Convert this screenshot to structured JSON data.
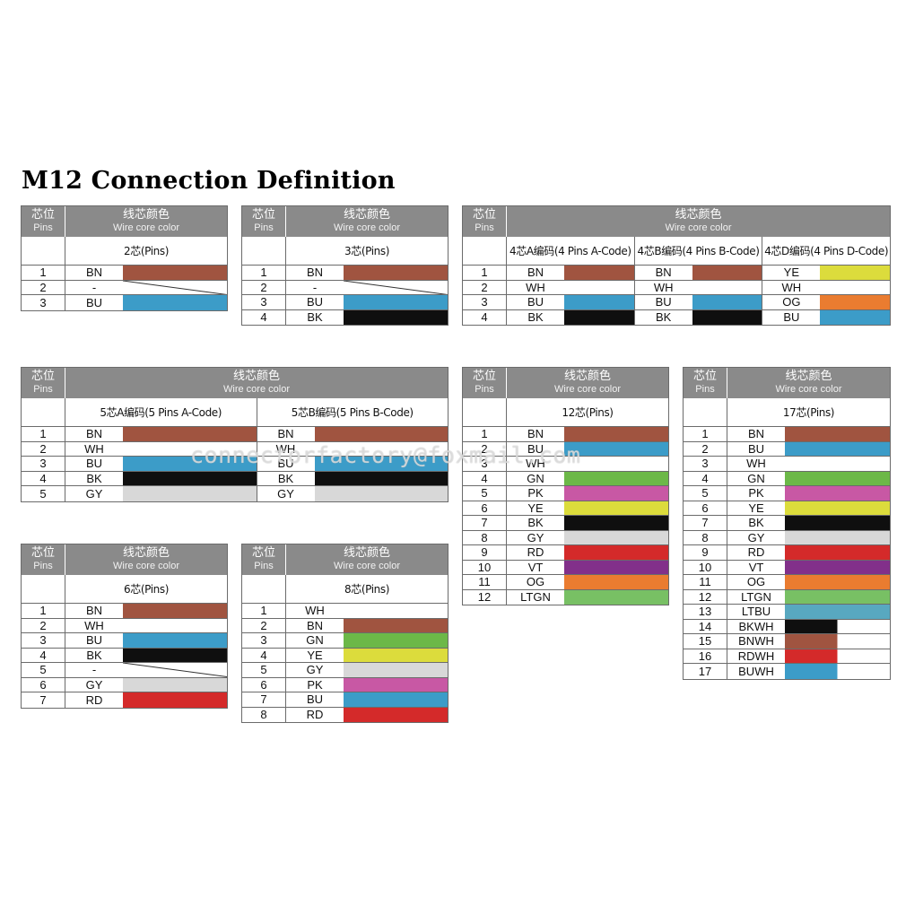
{
  "page_title": "M12 Connection Definition",
  "header": {
    "pins_zh": "芯位",
    "pins_en": "Pins",
    "wire_zh": "线芯颜色",
    "wire_en": "Wire core color"
  },
  "watermark": "connectorfactory@foxmail.com",
  "colors": {
    "BN": "#a05440",
    "BU": "#3c9cc8",
    "BK": "#0f0f0f",
    "WH": "#ffffff",
    "YE": "#dcdc3c",
    "OG": "#ea7c30",
    "GY": "#d8d8d8",
    "GN": "#6cb848",
    "PK": "#c858a4",
    "RD": "#d42a2a",
    "VT": "#82308a",
    "LTGN": "#78c064",
    "LTBU": "#58a8c0"
  },
  "tables": [
    {
      "id": "2pin",
      "groups": [
        {
          "label": "2芯(Pins)",
          "rows": [
            {
              "pin": "1",
              "code": "BN",
              "color": "BN"
            },
            {
              "pin": "2",
              "code": "-",
              "color": "none"
            },
            {
              "pin": "3",
              "code": "BU",
              "color": "BU"
            }
          ]
        }
      ]
    },
    {
      "id": "3pin",
      "groups": [
        {
          "label": "3芯(Pins)",
          "rows": [
            {
              "pin": "1",
              "code": "BN",
              "color": "BN"
            },
            {
              "pin": "2",
              "code": "-",
              "color": "none"
            },
            {
              "pin": "3",
              "code": "BU",
              "color": "BU"
            },
            {
              "pin": "4",
              "code": "BK",
              "color": "BK"
            }
          ]
        }
      ]
    },
    {
      "id": "4pin",
      "groups": [
        {
          "label": "4芯A编码(4 Pins A-Code)",
          "rows": [
            {
              "pin": "1",
              "code": "BN",
              "color": "BN"
            },
            {
              "pin": "2",
              "code": "WH",
              "color": "WH"
            },
            {
              "pin": "3",
              "code": "BU",
              "color": "BU"
            },
            {
              "pin": "4",
              "code": "BK",
              "color": "BK"
            }
          ]
        },
        {
          "label": "4芯B编码(4 Pins B-Code)",
          "rows": [
            {
              "pin": "1",
              "code": "BN",
              "color": "BN"
            },
            {
              "pin": "2",
              "code": "WH",
              "color": "WH"
            },
            {
              "pin": "3",
              "code": "BU",
              "color": "BU"
            },
            {
              "pin": "4",
              "code": "BK",
              "color": "BK"
            }
          ]
        },
        {
          "label": "4芯D编码(4 Pins D-Code)",
          "rows": [
            {
              "pin": "1",
              "code": "YE",
              "color": "YE"
            },
            {
              "pin": "2",
              "code": "WH",
              "color": "WH"
            },
            {
              "pin": "3",
              "code": "OG",
              "color": "OG"
            },
            {
              "pin": "4",
              "code": "BU",
              "color": "BU"
            }
          ]
        }
      ]
    },
    {
      "id": "5pin",
      "groups": [
        {
          "label": "5芯A编码(5 Pins A-Code)",
          "rows": [
            {
              "pin": "1",
              "code": "BN",
              "color": "BN"
            },
            {
              "pin": "2",
              "code": "WH",
              "color": "WH"
            },
            {
              "pin": "3",
              "code": "BU",
              "color": "BU"
            },
            {
              "pin": "4",
              "code": "BK",
              "color": "BK"
            },
            {
              "pin": "5",
              "code": "GY",
              "color": "GY"
            }
          ]
        },
        {
          "label": "5芯B编码(5 Pins B-Code)",
          "rows": [
            {
              "pin": "1",
              "code": "BN",
              "color": "BN"
            },
            {
              "pin": "2",
              "code": "WH",
              "color": "WH"
            },
            {
              "pin": "3",
              "code": "BU",
              "color": "BU"
            },
            {
              "pin": "4",
              "code": "BK",
              "color": "BK"
            },
            {
              "pin": "5",
              "code": "GY",
              "color": "GY"
            }
          ]
        }
      ]
    },
    {
      "id": "12pin",
      "groups": [
        {
          "label": "12芯(Pins)",
          "rows": [
            {
              "pin": "1",
              "code": "BN",
              "color": "BN"
            },
            {
              "pin": "2",
              "code": "BU",
              "color": "BU"
            },
            {
              "pin": "3",
              "code": "WH",
              "color": "WH"
            },
            {
              "pin": "4",
              "code": "GN",
              "color": "GN"
            },
            {
              "pin": "5",
              "code": "PK",
              "color": "PK"
            },
            {
              "pin": "6",
              "code": "YE",
              "color": "YE"
            },
            {
              "pin": "7",
              "code": "BK",
              "color": "BK"
            },
            {
              "pin": "8",
              "code": "GY",
              "color": "GY"
            },
            {
              "pin": "9",
              "code": "RD",
              "color": "RD"
            },
            {
              "pin": "10",
              "code": "VT",
              "color": "VT"
            },
            {
              "pin": "11",
              "code": "OG",
              "color": "OG"
            },
            {
              "pin": "12",
              "code": "LTGN",
              "color": "LTGN"
            }
          ]
        }
      ]
    },
    {
      "id": "17pin",
      "groups": [
        {
          "label": "17芯(Pins)",
          "rows": [
            {
              "pin": "1",
              "code": "BN",
              "color": "BN"
            },
            {
              "pin": "2",
              "code": "BU",
              "color": "BU"
            },
            {
              "pin": "3",
              "code": "WH",
              "color": "WH"
            },
            {
              "pin": "4",
              "code": "GN",
              "color": "GN"
            },
            {
              "pin": "5",
              "code": "PK",
              "color": "PK"
            },
            {
              "pin": "6",
              "code": "YE",
              "color": "YE"
            },
            {
              "pin": "7",
              "code": "BK",
              "color": "BK"
            },
            {
              "pin": "8",
              "code": "GY",
              "color": "GY"
            },
            {
              "pin": "9",
              "code": "RD",
              "color": "RD"
            },
            {
              "pin": "10",
              "code": "VT",
              "color": "VT"
            },
            {
              "pin": "11",
              "code": "OG",
              "color": "OG"
            },
            {
              "pin": "12",
              "code": "LTGN",
              "color": "LTGN"
            },
            {
              "pin": "13",
              "code": "LTBU",
              "color": "LTBU"
            },
            {
              "pin": "14",
              "code": "BKWH",
              "color": "BK",
              "color2": "WH"
            },
            {
              "pin": "15",
              "code": "BNWH",
              "color": "BN",
              "color2": "WH"
            },
            {
              "pin": "16",
              "code": "RDWH",
              "color": "RD",
              "color2": "WH"
            },
            {
              "pin": "17",
              "code": "BUWH",
              "color": "BU",
              "color2": "WH"
            }
          ]
        }
      ]
    },
    {
      "id": "6pin",
      "groups": [
        {
          "label": "6芯(Pins)",
          "rows": [
            {
              "pin": "1",
              "code": "BN",
              "color": "BN"
            },
            {
              "pin": "2",
              "code": "WH",
              "color": "WH"
            },
            {
              "pin": "3",
              "code": "BU",
              "color": "BU"
            },
            {
              "pin": "4",
              "code": "BK",
              "color": "BK"
            },
            {
              "pin": "5",
              "code": "-",
              "color": "none"
            },
            {
              "pin": "6",
              "code": "GY",
              "color": "GY"
            },
            {
              "pin": "7",
              "code": "RD",
              "color": "RD"
            }
          ]
        }
      ]
    },
    {
      "id": "8pin",
      "groups": [
        {
          "label": "8芯(Pins)",
          "rows": [
            {
              "pin": "1",
              "code": "WH",
              "color": "WH"
            },
            {
              "pin": "2",
              "code": "BN",
              "color": "BN"
            },
            {
              "pin": "3",
              "code": "GN",
              "color": "GN"
            },
            {
              "pin": "4",
              "code": "YE",
              "color": "YE"
            },
            {
              "pin": "5",
              "code": "GY",
              "color": "GY"
            },
            {
              "pin": "6",
              "code": "PK",
              "color": "PK"
            },
            {
              "pin": "7",
              "code": "BU",
              "color": "BU"
            },
            {
              "pin": "8",
              "code": "RD",
              "color": "RD"
            }
          ]
        }
      ]
    }
  ]
}
